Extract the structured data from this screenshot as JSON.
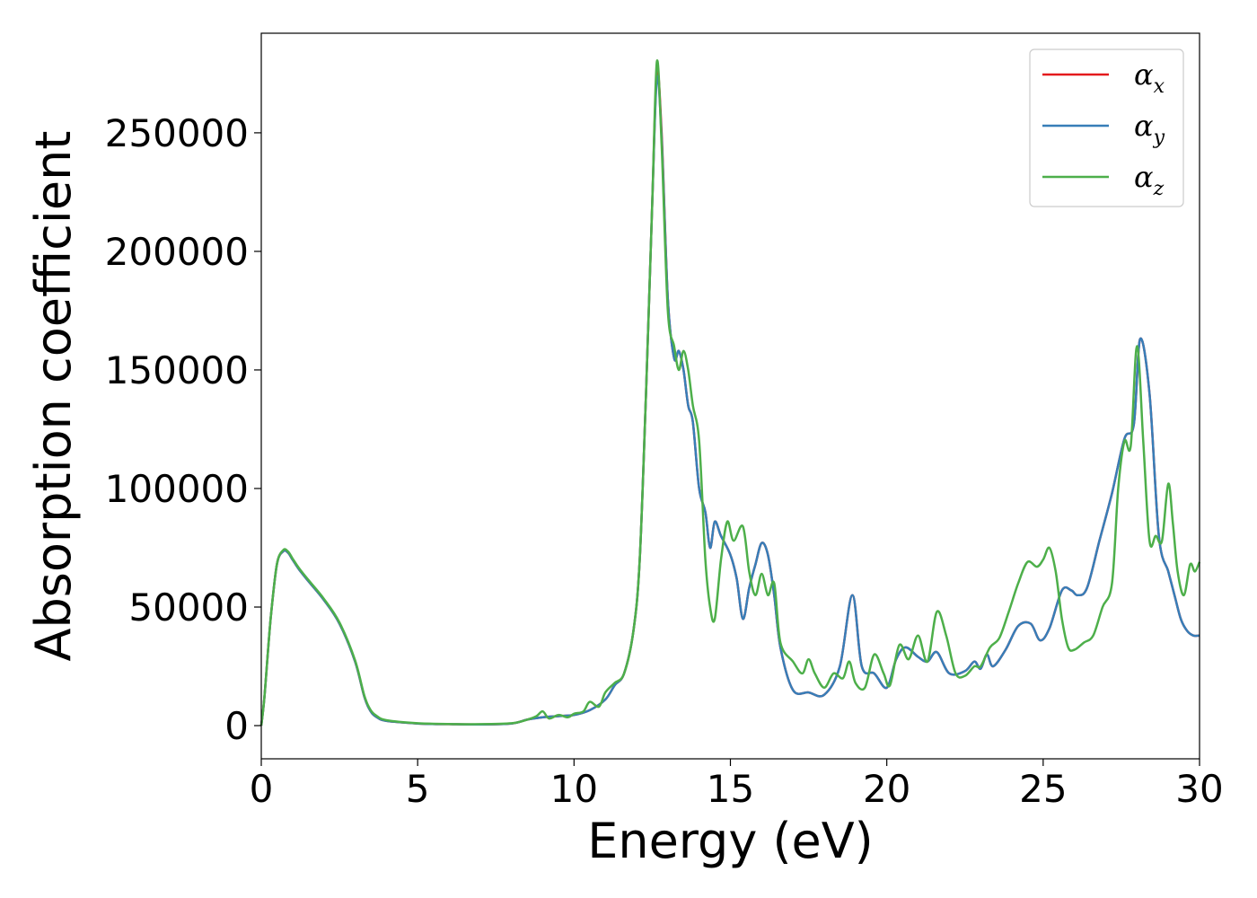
{
  "chart_data": {
    "type": "line",
    "title": "",
    "xlabel": "Energy (eV)",
    "ylabel": "Absorption coefficient",
    "xlim": [
      0,
      30
    ],
    "ylim": [
      -14000,
      292000
    ],
    "xticks": [
      0,
      5,
      10,
      15,
      20,
      25,
      30
    ],
    "xtick_labels": [
      "0",
      "5",
      "10",
      "15",
      "20",
      "25",
      "30"
    ],
    "yticks": [
      0,
      50000,
      100000,
      150000,
      200000,
      250000
    ],
    "ytick_labels": [
      "0",
      "50000",
      "100000",
      "150000",
      "200000",
      "250000"
    ],
    "grid": false,
    "legend_position": "top-right",
    "series": [
      {
        "name": "α_x",
        "legend_main": "α",
        "legend_sub": "x",
        "color": "#e41a1c",
        "x": [
          0,
          0.1,
          0.3,
          0.5,
          0.7,
          0.85,
          1.0,
          1.2,
          1.5,
          2.0,
          2.5,
          3.0,
          3.3,
          3.5,
          3.7,
          4.0,
          5.0,
          6.0,
          7.0,
          8.0,
          8.5,
          9.0,
          9.5,
          10.0,
          10.5,
          11.0,
          11.3,
          11.6,
          11.9,
          12.1,
          12.3,
          12.5,
          12.65,
          12.8,
          13.0,
          13.2,
          13.35,
          13.5,
          13.65,
          13.8,
          14.0,
          14.2,
          14.35,
          14.5,
          14.7,
          15.0,
          15.2,
          15.4,
          15.6,
          15.8,
          16.0,
          16.2,
          16.4,
          16.6,
          17.0,
          17.5,
          18.0,
          18.5,
          18.9,
          19.2,
          19.6,
          20.0,
          20.3,
          20.6,
          21.0,
          21.3,
          21.6,
          22.0,
          22.5,
          22.8,
          23.0,
          23.2,
          23.4,
          23.8,
          24.2,
          24.6,
          24.9,
          25.2,
          25.6,
          25.9,
          26.1,
          26.4,
          26.8,
          27.2,
          27.6,
          27.9,
          28.1,
          28.4,
          28.7,
          29.0,
          29.2,
          29.4,
          29.6,
          29.8,
          30.0
        ],
        "values": [
          0,
          12000,
          45000,
          68000,
          73500,
          73000,
          70000,
          66000,
          61000,
          53000,
          43000,
          27000,
          12000,
          6000,
          3500,
          2000,
          900,
          600,
          500,
          900,
          2500,
          3500,
          4000,
          4500,
          6500,
          11000,
          17000,
          22000,
          40000,
          70000,
          140000,
          220000,
          275000,
          250000,
          180000,
          155000,
          158000,
          150000,
          135000,
          128000,
          100000,
          90000,
          75000,
          86000,
          80000,
          72000,
          62000,
          45000,
          58000,
          68000,
          77000,
          72000,
          55000,
          33000,
          15000,
          14000,
          13000,
          25000,
          55000,
          25000,
          22000,
          16000,
          28000,
          33000,
          29000,
          27000,
          31000,
          22000,
          23000,
          27000,
          24000,
          30000,
          25000,
          32000,
          42000,
          43000,
          36000,
          41000,
          57000,
          57000,
          55000,
          58000,
          78000,
          98000,
          121000,
          127000,
          163000,
          140000,
          80000,
          65000,
          55000,
          45000,
          40000,
          38000,
          38000
        ]
      },
      {
        "name": "α_y",
        "legend_main": "α",
        "legend_sub": "y",
        "color": "#377eb8",
        "x": [
          0,
          0.1,
          0.3,
          0.5,
          0.7,
          0.85,
          1.0,
          1.2,
          1.5,
          2.0,
          2.5,
          3.0,
          3.3,
          3.5,
          3.7,
          4.0,
          5.0,
          6.0,
          7.0,
          8.0,
          8.5,
          9.0,
          9.5,
          10.0,
          10.5,
          11.0,
          11.3,
          11.6,
          11.9,
          12.1,
          12.3,
          12.5,
          12.65,
          12.8,
          13.0,
          13.2,
          13.35,
          13.5,
          13.65,
          13.8,
          14.0,
          14.2,
          14.35,
          14.5,
          14.7,
          15.0,
          15.2,
          15.4,
          15.6,
          15.8,
          16.0,
          16.2,
          16.4,
          16.6,
          17.0,
          17.5,
          18.0,
          18.5,
          18.9,
          19.2,
          19.6,
          20.0,
          20.3,
          20.6,
          21.0,
          21.3,
          21.6,
          22.0,
          22.5,
          22.8,
          23.0,
          23.2,
          23.4,
          23.8,
          24.2,
          24.6,
          24.9,
          25.2,
          25.6,
          25.9,
          26.1,
          26.4,
          26.8,
          27.2,
          27.6,
          27.9,
          28.1,
          28.4,
          28.7,
          29.0,
          29.2,
          29.4,
          29.6,
          29.8,
          30.0
        ],
        "values": [
          0,
          12000,
          45000,
          68000,
          73500,
          73000,
          70000,
          66000,
          61000,
          53000,
          43000,
          27000,
          12000,
          6000,
          3500,
          2000,
          900,
          600,
          500,
          900,
          2500,
          3500,
          4000,
          4500,
          6500,
          11000,
          17000,
          22000,
          40000,
          70000,
          140000,
          220000,
          273000,
          248000,
          180000,
          155000,
          158000,
          150000,
          135000,
          128000,
          100000,
          90000,
          75000,
          86000,
          80000,
          72000,
          62000,
          45000,
          58000,
          68000,
          77000,
          72000,
          55000,
          33000,
          15000,
          14000,
          13000,
          25000,
          55000,
          25000,
          22000,
          16000,
          28000,
          33000,
          29000,
          27000,
          31000,
          22000,
          23000,
          27000,
          24000,
          30000,
          25000,
          32000,
          42000,
          43000,
          36000,
          41000,
          57000,
          57000,
          55000,
          58000,
          78000,
          98000,
          121000,
          127000,
          163000,
          140000,
          80000,
          65000,
          55000,
          45000,
          40000,
          38000,
          38000
        ]
      },
      {
        "name": "α_z",
        "legend_main": "α",
        "legend_sub": "z",
        "color": "#4daf4a",
        "x": [
          0,
          0.1,
          0.3,
          0.5,
          0.7,
          0.85,
          1.0,
          1.2,
          1.5,
          2.0,
          2.5,
          3.0,
          3.3,
          3.5,
          3.7,
          4.0,
          5.0,
          6.0,
          7.0,
          8.0,
          8.5,
          8.8,
          9.0,
          9.2,
          9.5,
          9.8,
          10.0,
          10.3,
          10.5,
          10.8,
          11.0,
          11.3,
          11.6,
          11.9,
          12.1,
          12.3,
          12.5,
          12.65,
          12.8,
          13.0,
          13.2,
          13.35,
          13.5,
          13.65,
          13.8,
          14.0,
          14.2,
          14.35,
          14.5,
          14.7,
          14.9,
          15.1,
          15.4,
          15.6,
          15.8,
          16.0,
          16.2,
          16.4,
          16.6,
          17.0,
          17.3,
          17.5,
          17.7,
          18.0,
          18.3,
          18.6,
          18.8,
          19.0,
          19.3,
          19.6,
          19.9,
          20.1,
          20.4,
          20.7,
          21.0,
          21.3,
          21.6,
          21.9,
          22.2,
          22.5,
          22.8,
          23.0,
          23.3,
          23.6,
          23.9,
          24.2,
          24.5,
          24.8,
          25.0,
          25.2,
          25.4,
          25.6,
          25.8,
          26.0,
          26.3,
          26.6,
          26.9,
          27.2,
          27.4,
          27.6,
          27.8,
          28.0,
          28.2,
          28.4,
          28.6,
          28.8,
          29.0,
          29.15,
          29.3,
          29.5,
          29.7,
          29.85,
          30.0
        ],
        "values": [
          0,
          12000,
          45000,
          68000,
          74000,
          73500,
          70500,
          66500,
          61500,
          53500,
          43500,
          27500,
          12500,
          6500,
          4000,
          2300,
          1000,
          700,
          600,
          1000,
          2500,
          4000,
          6000,
          3000,
          4500,
          3500,
          5000,
          6000,
          10000,
          8000,
          14000,
          18000,
          22000,
          40000,
          70000,
          140000,
          220000,
          280000,
          245000,
          175000,
          160000,
          150000,
          158000,
          150000,
          135000,
          120000,
          70000,
          50000,
          45000,
          70000,
          86000,
          78000,
          84000,
          65000,
          55000,
          64000,
          55000,
          60000,
          35000,
          27000,
          22000,
          28000,
          22000,
          16000,
          22000,
          20000,
          27000,
          18000,
          16000,
          30000,
          22000,
          17000,
          34000,
          28000,
          38000,
          27000,
          48000,
          38000,
          22000,
          21000,
          25000,
          25000,
          33000,
          37000,
          48000,
          60000,
          69000,
          67000,
          70000,
          75000,
          65000,
          45000,
          33000,
          32000,
          35000,
          38000,
          50000,
          60000,
          100000,
          120000,
          118000,
          160000,
          120000,
          78000,
          80000,
          78000,
          102000,
          85000,
          65000,
          55000,
          68000,
          65000,
          69000
        ]
      }
    ]
  }
}
